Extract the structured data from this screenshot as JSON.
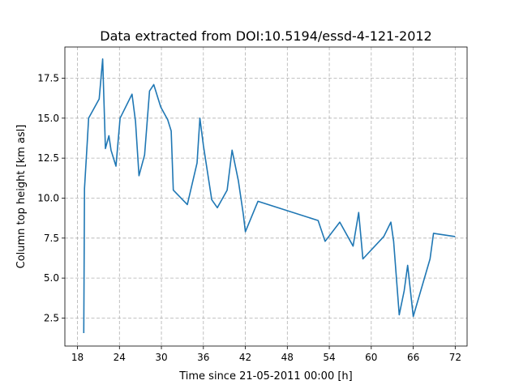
{
  "chart_data": {
    "type": "line",
    "title": "Data extracted from DOI:10.5194/essd-4-121-2012",
    "xlabel": "Time since 21-05-2011 00:00 [h]",
    "ylabel": "Column top height [km asl]",
    "xlim": [
      16.2,
      73.7
    ],
    "ylim": [
      0.75,
      19.45
    ],
    "xticks": [
      18,
      24,
      30,
      36,
      42,
      48,
      54,
      60,
      66,
      72
    ],
    "xtick_labels": [
      "18",
      "24",
      "30",
      "36",
      "42",
      "48",
      "54",
      "60",
      "66",
      "72"
    ],
    "yticks": [
      2.5,
      5.0,
      7.5,
      10.0,
      12.5,
      15.0,
      17.5
    ],
    "ytick_labels": [
      "2.5",
      "5.0",
      "7.5",
      "10.0",
      "12.5",
      "15.0",
      "17.5"
    ],
    "grid": true,
    "color": "#1f77b4",
    "series": [
      {
        "x": [
          18.9,
          19.0,
          19.4,
          19.6,
          21.1,
          21.6,
          22.0,
          22.5,
          22.8,
          23.5,
          24.1,
          25.8,
          26.3,
          26.8,
          27.6,
          28.3,
          28.9,
          29.9,
          30.9,
          31.4,
          31.7,
          33.7,
          35.1,
          35.5,
          36.0,
          37.2,
          38.0,
          39.4,
          40.1,
          41.0,
          41.7,
          42.0,
          43.8,
          52.4,
          53.4,
          55.5,
          57.4,
          58.2,
          58.8,
          61.8,
          62.8,
          63.2,
          64.0,
          64.7,
          65.2,
          66.0,
          68.4,
          68.9,
          71.9
        ],
        "y": [
          1.6,
          10.6,
          13.5,
          15.0,
          16.2,
          18.7,
          13.1,
          13.9,
          13.0,
          12.0,
          15.0,
          16.5,
          14.8,
          11.4,
          12.7,
          16.7,
          17.1,
          15.7,
          14.9,
          14.2,
          10.5,
          9.6,
          12.2,
          15.0,
          13.3,
          9.9,
          9.4,
          10.5,
          13.0,
          11.1,
          9.0,
          7.9,
          9.8,
          8.6,
          7.3,
          8.5,
          7.0,
          9.1,
          6.2,
          7.6,
          8.5,
          7.3,
          2.7,
          4.2,
          5.8,
          2.6,
          6.2,
          7.8,
          7.6
        ]
      }
    ]
  }
}
